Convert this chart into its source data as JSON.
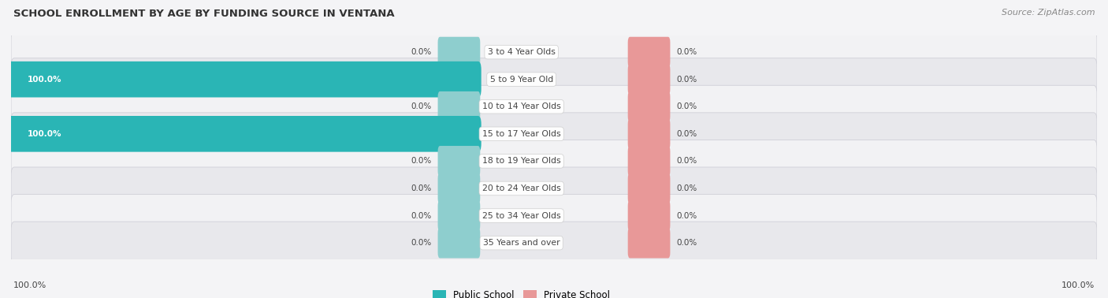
{
  "title": "SCHOOL ENROLLMENT BY AGE BY FUNDING SOURCE IN VENTANA",
  "source": "Source: ZipAtlas.com",
  "categories": [
    "3 to 4 Year Olds",
    "5 to 9 Year Old",
    "10 to 14 Year Olds",
    "15 to 17 Year Olds",
    "18 to 19 Year Olds",
    "20 to 24 Year Olds",
    "25 to 34 Year Olds",
    "35 Years and over"
  ],
  "public_left": [
    0.0,
    100.0,
    0.0,
    100.0,
    0.0,
    0.0,
    0.0,
    0.0
  ],
  "private_right": [
    0.0,
    0.0,
    0.0,
    0.0,
    0.0,
    0.0,
    0.0,
    0.0
  ],
  "public_color": "#2ab5b5",
  "public_color_light": "#8ecece",
  "private_color": "#e89898",
  "label_color": "#444444",
  "title_color": "#333333",
  "axis_label_left": "100.0%",
  "axis_label_right": "100.0%",
  "legend_public": "Public School",
  "legend_private": "Private School",
  "bg_light": "#f2f2f4",
  "bg_dark": "#e8e8ec",
  "row_border": "#d0d0d8"
}
